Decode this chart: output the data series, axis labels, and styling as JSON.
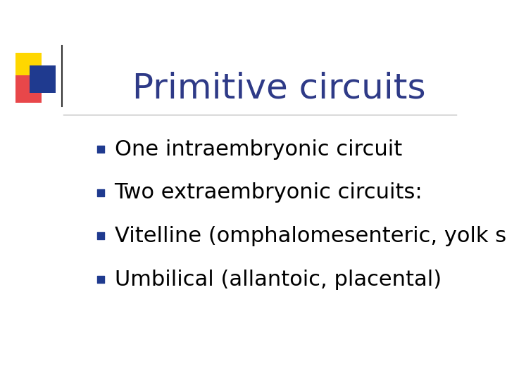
{
  "title": "Primitive circuits",
  "title_color": "#2E3A87",
  "title_fontsize": 36,
  "background_color": "#FFFFFF",
  "bullet_items": [
    "One intraembryonic circuit",
    "Two extraembryonic circuits:",
    "Vitelline (omphalomesenteric, yolk sac)",
    "Umbilical (allantoic, placental)"
  ],
  "bullet_color": "#000000",
  "bullet_fontsize": 22,
  "bullet_marker_color": "#1F3A8F",
  "line_color": "#BBBBBB",
  "logo_yellow": "#FFD700",
  "logo_red": "#E8474A",
  "logo_blue": "#1F3A8F",
  "divider_color": "#333333"
}
